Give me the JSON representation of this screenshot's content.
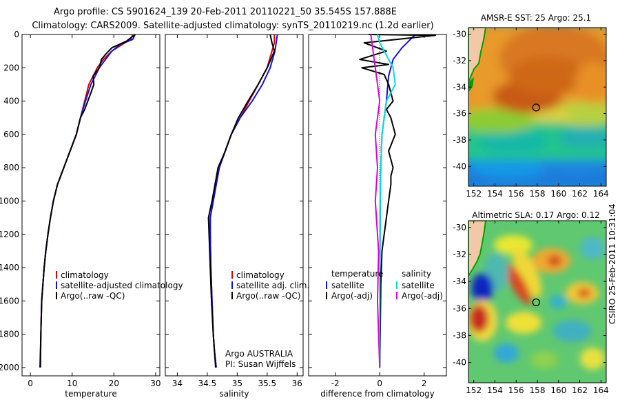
{
  "header": {
    "line1": "Argo profile: CS 5901624_139 20-Feb-2011 20110221_50 35.545S 157.888E",
    "line2": "Climatology: CARS2009. Satellite-adjusted climatology: synTS_20110219.nc (1.2d earlier)"
  },
  "colors": {
    "climatology": "#e00000",
    "satellite": "#1010e0",
    "argo": "#000000",
    "satellite_salinity": "#00e0e0",
    "argo_salinity_adj": "#e000e0",
    "land": "#f2c8a8",
    "coast": "#00a000"
  },
  "credits": {
    "org": "Argo AUSTRALIA",
    "pi": "PI: Susan Wijffels"
  },
  "footer_stamp": "CSIRO 25-Feb-2011 10:31:04",
  "chart_data": [
    {
      "id": "temperature",
      "type": "line",
      "xlabel": "temperature",
      "xlim": [
        -2,
        31
      ],
      "ylim": [
        0,
        2050
      ],
      "y_reversed": true,
      "xticks": [
        0,
        10,
        20,
        30
      ],
      "yticks": [
        0,
        200,
        400,
        600,
        800,
        1000,
        1200,
        1400,
        1600,
        1800,
        2000
      ],
      "legend": {
        "position": "lower-right",
        "entries": [
          "climatology",
          "satellite-adjusted climatology",
          "Argo(..raw -QC)"
        ]
      },
      "series": [
        {
          "name": "climatology",
          "color_key": "climatology",
          "x": [
            24.5,
            24.0,
            22.0,
            19.5,
            17.5,
            16.0,
            15.0,
            14.0,
            13.0,
            12.0,
            11.0,
            9.5,
            8.0,
            6.5,
            5.5,
            4.8,
            4.2,
            3.7,
            3.3,
            3.0,
            2.7,
            2.5,
            2.4
          ],
          "depth": [
            0,
            30,
            60,
            100,
            150,
            200,
            250,
            300,
            400,
            500,
            600,
            700,
            800,
            900,
            1000,
            1100,
            1200,
            1300,
            1400,
            1500,
            1600,
            1800,
            2000
          ]
        },
        {
          "name": "satellite-adjusted climatology",
          "color_key": "satellite",
          "x": [
            25.1,
            24.5,
            21.5,
            19.5,
            18.0,
            16.5,
            15.5,
            14.5,
            13.2,
            12.0,
            11.0,
            9.5,
            8.0,
            6.5,
            5.5,
            4.8,
            4.2,
            3.7,
            3.3,
            3.0,
            2.7,
            2.5,
            2.4
          ],
          "depth": [
            0,
            30,
            60,
            100,
            150,
            200,
            250,
            300,
            400,
            500,
            600,
            700,
            800,
            900,
            1000,
            1100,
            1200,
            1300,
            1400,
            1500,
            1600,
            1800,
            2000
          ]
        },
        {
          "name": "Argo(..raw -QC)",
          "color_key": "argo",
          "x": [
            25.1,
            23.0,
            19.5,
            18.0,
            17.0,
            16.5,
            15.0,
            15.2,
            14.5,
            13.0,
            12.0,
            11.0,
            9.5,
            8.0,
            6.5,
            5.5,
            4.8,
            4.2,
            3.7,
            3.3,
            3.0,
            2.7,
            2.5,
            2.3
          ],
          "depth": [
            0,
            40,
            80,
            120,
            150,
            200,
            250,
            300,
            350,
            450,
            500,
            600,
            700,
            800,
            900,
            1000,
            1100,
            1200,
            1300,
            1400,
            1500,
            1600,
            1800,
            2000
          ]
        }
      ]
    },
    {
      "id": "salinity",
      "type": "line",
      "xlabel": "salinity",
      "xlim": [
        33.8,
        36.1
      ],
      "ylim": [
        0,
        2050
      ],
      "y_reversed": true,
      "xticks": [
        34,
        34.5,
        35,
        35.5,
        36
      ],
      "legend": {
        "position": "lower-right",
        "entries": [
          "climatology",
          "satellite adj. clim.",
          "Argo(..raw -QC)"
        ]
      },
      "series": [
        {
          "name": "climatology",
          "color_key": "climatology",
          "x": [
            35.62,
            35.62,
            35.58,
            35.5,
            35.35,
            35.2,
            35.05,
            34.9,
            34.8,
            34.7,
            34.6,
            34.55,
            34.55,
            34.56,
            34.58,
            34.6,
            34.62,
            34.65
          ],
          "depth": [
            0,
            50,
            100,
            200,
            300,
            400,
            500,
            600,
            700,
            800,
            1000,
            1100,
            1200,
            1400,
            1600,
            1800,
            1900,
            2000
          ]
        },
        {
          "name": "satellite adj. clim.",
          "color_key": "satellite",
          "x": [
            35.67,
            35.65,
            35.63,
            35.55,
            35.42,
            35.25,
            35.05,
            34.9,
            34.8,
            34.7,
            34.6,
            34.55,
            34.55,
            34.56,
            34.58,
            34.6,
            34.62,
            34.65
          ],
          "depth": [
            0,
            50,
            100,
            200,
            300,
            400,
            500,
            600,
            700,
            800,
            1000,
            1100,
            1200,
            1400,
            1600,
            1800,
            1900,
            2000
          ]
        },
        {
          "name": "Argo(..raw -QC)",
          "color_key": "argo",
          "x": [
            35.55,
            35.58,
            35.62,
            35.5,
            35.35,
            35.18,
            35.02,
            34.9,
            34.8,
            34.68,
            34.58,
            34.52,
            34.53,
            34.55,
            34.57,
            34.6,
            34.62,
            34.64
          ],
          "depth": [
            0,
            50,
            100,
            200,
            300,
            400,
            500,
            600,
            700,
            800,
            1000,
            1100,
            1200,
            1400,
            1600,
            1800,
            1900,
            2000
          ]
        }
      ]
    },
    {
      "id": "difference",
      "type": "line",
      "xlabel": "difference from climatology",
      "xlim": [
        -3.2,
        3.0
      ],
      "ylim": [
        0,
        2050
      ],
      "y_reversed": true,
      "xticks": [
        -2,
        0,
        2
      ],
      "legend": {
        "position": "lower-right",
        "temperature_title": "temperature",
        "salinity_title": "salinity",
        "temperature_entries": [
          "satellite",
          "Argo(-adj)"
        ],
        "salinity_entries": [
          "satellite",
          "Argo(-adj)"
        ]
      },
      "series": [
        {
          "name": "temperature satellite",
          "color_key": "satellite",
          "x": [
            1.6,
            1.3,
            1.0,
            0.6,
            0.4,
            0.3,
            0.2,
            0.1,
            0.05,
            0.02,
            0.01,
            0.0
          ],
          "depth": [
            0,
            40,
            80,
            150,
            250,
            400,
            500,
            600,
            800,
            1000,
            1500,
            2000
          ]
        },
        {
          "name": "temperature Argo(-adj)",
          "color_key": "argo",
          "x": [
            -0.5,
            2.5,
            -0.7,
            0.3,
            -0.9,
            0.4,
            -0.8,
            0.2,
            0.4,
            0.5,
            0.6,
            0.3,
            0.5,
            0.7,
            0.4,
            0.6,
            0.5,
            0.5,
            0.4,
            0.3,
            0.2,
            0.1,
            0.05,
            0.02,
            0.0
          ],
          "depth": [
            0,
            5,
            50,
            100,
            150,
            180,
            200,
            240,
            300,
            350,
            400,
            450,
            500,
            600,
            700,
            800,
            850,
            900,
            1000,
            1100,
            1200,
            1300,
            1500,
            1800,
            2000
          ]
        },
        {
          "name": "salinity satellite",
          "color_key": "satellite_salinity",
          "x": [
            -0.1,
            0.0,
            0.2,
            0.6,
            0.7,
            0.3,
            0.2,
            0.1,
            0.05,
            0.02,
            0.0,
            0.0
          ],
          "depth": [
            0,
            50,
            100,
            200,
            300,
            400,
            500,
            600,
            800,
            1000,
            1500,
            2000
          ]
        },
        {
          "name": "salinity Argo(-adj)",
          "color_key": "argo_salinity_adj",
          "x": [
            -0.4,
            -0.3,
            -0.2,
            -0.1,
            0.0,
            -0.1,
            -0.2,
            -0.1,
            -0.2,
            -0.05,
            -0.1,
            -0.05,
            0.0
          ],
          "depth": [
            0,
            100,
            200,
            300,
            400,
            500,
            600,
            800,
            1000,
            1300,
            1600,
            1800,
            2000
          ]
        }
      ]
    },
    {
      "id": "sst_map",
      "type": "heatmap",
      "title": "AMSR-E SST: 25 Argo: 25.1",
      "xlim": [
        151.5,
        164.5
      ],
      "ylim": [
        -41.5,
        -29.5
      ],
      "xticks": [
        152,
        154,
        156,
        158,
        160,
        162,
        164
      ],
      "yticks": [
        -30,
        -32,
        -34,
        -36,
        -38,
        -40
      ],
      "marker": {
        "lon": 157.888,
        "lat": -35.545
      }
    },
    {
      "id": "sla_map",
      "type": "heatmap",
      "title": "Altimetric SLA: 0.17 Argo: 0.12",
      "xlim": [
        151.5,
        164.5
      ],
      "ylim": [
        -41.5,
        -29.5
      ],
      "xticks": [
        152,
        154,
        156,
        158,
        160,
        162,
        164
      ],
      "yticks": [
        -30,
        -32,
        -34,
        -36,
        -38,
        -40
      ],
      "marker": {
        "lon": 157.888,
        "lat": -35.545
      }
    }
  ]
}
